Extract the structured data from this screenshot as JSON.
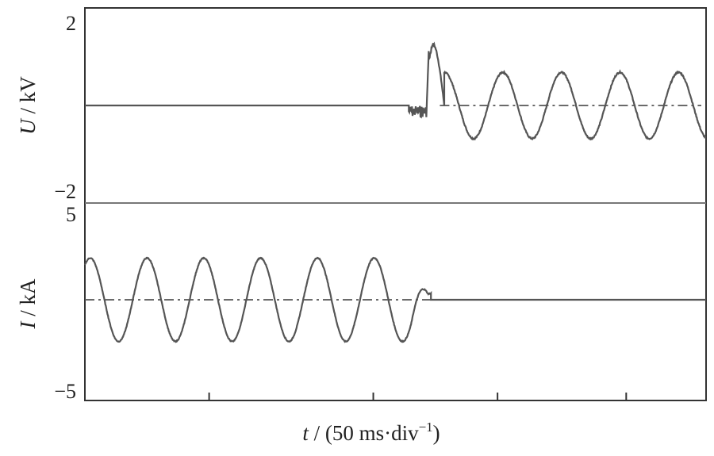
{
  "chart_data": [
    {
      "type": "line",
      "panel": "top",
      "ylabel_var": "U",
      "ylabel_unit": " / kV",
      "ylim": [
        -2,
        2
      ],
      "ytick_labels": [
        "2",
        "−2"
      ],
      "x_divisions": [
        "0",
        "2.8",
        "6.5",
        "9.3",
        "12.2",
        "14"
      ],
      "baseline_note": "dash-dot zero reference line after 9.3 div",
      "series": [
        {
          "description": "voltage",
          "segments": [
            {
              "x_div": [
                0,
                7.3
              ],
              "y": 0,
              "style": "flat"
            },
            {
              "x_div": [
                7.3,
                7.7
              ],
              "style": "noise",
              "amplitude": 0.25
            },
            {
              "x_div": [
                7.7,
                8.1
              ],
              "style": "spike",
              "peak": 1.3
            },
            {
              "x_div": [
                8.1,
                14
              ],
              "style": "sine",
              "amplitude": 0.7,
              "period_div": 1.32
            }
          ]
        }
      ]
    },
    {
      "type": "line",
      "panel": "bottom",
      "ylabel_var": "I",
      "ylabel_unit": " / kA",
      "ylim": [
        -5,
        5
      ],
      "ytick_labels": [
        "5",
        "−5"
      ],
      "baseline_note": "dash-dot zero reference line up to 7.8 div",
      "series": [
        {
          "description": "current",
          "segments": [
            {
              "x_div": [
                0,
                7.8
              ],
              "style": "sine",
              "amplitude": 2.2,
              "period_div": 1.28
            },
            {
              "x_div": [
                7.8,
                14
              ],
              "y": 0,
              "style": "flat"
            }
          ]
        }
      ]
    }
  ],
  "xlabel_var": "t",
  "xlabel_rest": " / (50 ms·div",
  "xlabel_sup": "−1",
  "xlabel_close": ")"
}
